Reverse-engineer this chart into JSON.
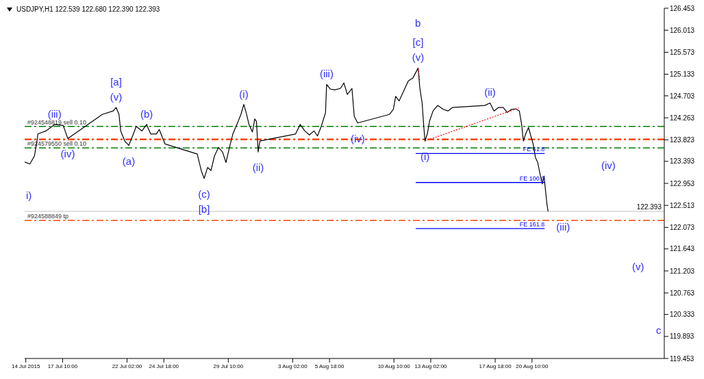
{
  "chart_data": {
    "type": "line",
    "title": "USDJPY,H1  122.539 122.680 122.390 122.393",
    "xlim": [
      "2015-07-14T16:00",
      "2015-08-30T00:00"
    ],
    "xticks": [
      {
        "value": "2015-07-14T18:00",
        "label": "14 Jul 2015"
      },
      {
        "value": "2015-07-17T10:00",
        "label": "17 Jul 10:00"
      },
      {
        "value": "2015-07-22T02:00",
        "label": "22 Jul 02:00"
      },
      {
        "value": "2015-07-24T18:00",
        "label": "24 Jul 18:00"
      },
      {
        "value": "2015-07-29T10:00",
        "label": "29 Jul 10:00"
      },
      {
        "value": "2015-08-03T02:00",
        "label": "3 Aug 02:00"
      },
      {
        "value": "2015-08-05T18:00",
        "label": "5 Aug 18:00"
      },
      {
        "value": "2015-08-10T10:00",
        "label": "10 Aug 10:00"
      },
      {
        "value": "2015-08-13T02:00",
        "label": "13 Aug 02:00"
      },
      {
        "value": "2015-08-17T18:00",
        "label": "17 Aug 18:00"
      },
      {
        "value": "2015-08-20T10:00",
        "label": "20 Aug 10:00"
      }
    ],
    "ylim": [
      119.453,
      126.453
    ],
    "yticks": [
      126.453,
      126.013,
      125.573,
      125.133,
      124.703,
      124.263,
      123.823,
      123.393,
      122.953,
      122.513,
      122.073,
      121.643,
      121.203,
      120.763,
      120.333,
      119.893,
      119.453
    ],
    "series": [
      {
        "color": "#000000",
        "line_style": "solid",
        "x": [
          "2015-07-14T16:00",
          "2015-07-15T01:00",
          "2015-07-15T09:00",
          "2015-07-15T13:00",
          "2015-07-15T15:00",
          "2015-07-16T05:00",
          "2015-07-16T20:00",
          "2015-07-17T11:00",
          "2015-07-17T19:00",
          "2015-07-20T07:00",
          "2015-07-21T02:00",
          "2015-07-21T07:00",
          "2015-07-21T12:00",
          "2015-07-21T15:00",
          "2015-07-21T22:00",
          "2015-07-22T05:00",
          "2015-07-22T13:00",
          "2015-07-22T18:00",
          "2015-07-23T04:00",
          "2015-07-23T12:00",
          "2015-07-23T19:00",
          "2015-07-24T05:00",
          "2015-07-24T10:00",
          "2015-07-24T20:00",
          "2015-07-27T04:00",
          "2015-07-27T11:00",
          "2015-07-27T16:00",
          "2015-07-27T22:00",
          "2015-07-28T04:00",
          "2015-07-28T10:00",
          "2015-07-28T17:00",
          "2015-07-29T00:00",
          "2015-07-29T06:00",
          "2015-07-29T12:00",
          "2015-07-29T18:00",
          "2015-07-30T02:00",
          "2015-07-30T08:00",
          "2015-07-30T13:00",
          "2015-07-30T17:00",
          "2015-07-30T22:00",
          "2015-07-31T04:00",
          "2015-07-31T08:00",
          "2015-07-31T11:00",
          "2015-07-31T14:00",
          "2015-07-31T17:00",
          "2015-08-03T07:00",
          "2015-08-03T15:00",
          "2015-08-03T23:00",
          "2015-08-04T07:00",
          "2015-08-04T15:00",
          "2015-08-04T21:00",
          "2015-08-05T03:00",
          "2015-08-05T11:00",
          "2015-08-05T13:00",
          "2015-08-05T19:00",
          "2015-08-06T03:00",
          "2015-08-06T13:00",
          "2015-08-06T19:00",
          "2015-08-07T01:00",
          "2015-08-07T09:00",
          "2015-08-07T13:00",
          "2015-08-07T19:00",
          "2015-08-10T02:00",
          "2015-08-10T09:00",
          "2015-08-10T13:00",
          "2015-08-10T19:00",
          "2015-08-11T03:00",
          "2015-08-11T11:00",
          "2015-08-11T19:00",
          "2015-08-12T01:00",
          "2015-08-12T04:00",
          "2015-08-12T07:00",
          "2015-08-12T11:00",
          "2015-08-12T14:00",
          "2015-08-12T16:00",
          "2015-08-12T20:00",
          "2015-08-13T00:00",
          "2015-08-13T06:00",
          "2015-08-13T14:00",
          "2015-08-14T00:00",
          "2015-08-14T08:00",
          "2015-08-14T16:00",
          "2015-08-17T00:00",
          "2015-08-17T09:00",
          "2015-08-17T16:00",
          "2015-08-18T00:00",
          "2015-08-18T08:00",
          "2015-08-18T15:00",
          "2015-08-18T22:00",
          "2015-08-19T06:00",
          "2015-08-19T12:00",
          "2015-08-19T16:00",
          "2015-08-19T19:00",
          "2015-08-19T23:00",
          "2015-08-20T04:00",
          "2015-08-20T08:00",
          "2015-08-20T12:00",
          "2015-08-20T16:00",
          "2015-08-20T20:00",
          "2015-08-21T00:00",
          "2015-08-21T04:00",
          "2015-08-21T07:00",
          "2015-08-21T09:00",
          "2015-08-21T12:00",
          "2015-08-21T14:00"
        ],
        "values": [
          123.38,
          123.34,
          123.5,
          123.76,
          123.94,
          124.0,
          124.13,
          124.11,
          123.85,
          124.33,
          124.4,
          124.47,
          124.33,
          124.0,
          123.8,
          123.71,
          123.94,
          124.09,
          124.0,
          124.13,
          123.94,
          123.94,
          124.03,
          123.74,
          123.54,
          123.21,
          123.05,
          123.27,
          123.21,
          123.5,
          123.67,
          123.58,
          123.37,
          123.67,
          123.94,
          124.16,
          124.33,
          124.53,
          124.37,
          124.13,
          123.98,
          124.24,
          124.19,
          123.58,
          123.8,
          123.94,
          124.13,
          124.0,
          123.92,
          124.0,
          123.9,
          124.07,
          124.36,
          124.93,
          124.84,
          124.82,
          124.85,
          124.96,
          124.73,
          124.85,
          124.29,
          124.16,
          124.33,
          124.43,
          124.69,
          124.6,
          124.8,
          125.0,
          125.06,
          125.19,
          125.26,
          124.86,
          124.56,
          124.07,
          123.8,
          123.94,
          124.2,
          124.4,
          124.51,
          124.43,
          124.4,
          124.47,
          124.51,
          124.56,
          124.4,
          124.47,
          124.47,
          124.37,
          124.43,
          124.44,
          124.4,
          124.13,
          123.8,
          123.94,
          124.07,
          123.9,
          123.74,
          123.47,
          123.37,
          123.14,
          122.94,
          123.1,
          122.87,
          122.54,
          122.39
        ]
      },
      {
        "name": "FE 61.8",
        "color": "#0000ff",
        "line_style": "solid",
        "x": [
          "2015-08-12T00:00",
          "2015-08-21T08:00"
        ],
        "values": [
          123.55,
          123.55
        ]
      },
      {
        "name": "FE 100.0",
        "color": "#0000ff",
        "line_style": "solid",
        "x": [
          "2015-08-12T00:00",
          "2015-08-21T08:00"
        ],
        "values": [
          122.97,
          122.97
        ]
      },
      {
        "name": "FE 161.8",
        "color": "#0000ff",
        "line_style": "solid",
        "x": [
          "2015-08-12T00:00",
          "2015-08-21T08:00"
        ],
        "values": [
          122.05,
          122.05
        ]
      },
      {
        "color": "#ff0000",
        "line_style": "dotted",
        "x": [
          "2015-08-12T16:00",
          "2015-08-19T11:00"
        ],
        "values": [
          123.8,
          124.46
        ]
      },
      {
        "color": "#ff0000",
        "line_style": "dotted",
        "x": [
          "2015-08-12T04:00",
          "2015-08-12T07:00"
        ],
        "values": [
          125.26,
          125.0
        ]
      }
    ],
    "ref_lines": [
      {
        "axis": "y",
        "value": 124.09,
        "label": "#924548819 sell 0.10",
        "color": "#008000",
        "line_style": "dashed"
      },
      {
        "axis": "y",
        "value": 123.83,
        "color": "#ff4500",
        "line_style": "dashed"
      },
      {
        "axis": "y",
        "value": 123.66,
        "label": "#924579550 sell 0.10",
        "color": "#008000",
        "line_style": "dashed"
      },
      {
        "axis": "y",
        "value": 122.393,
        "label": "122.393",
        "color": "#c0c0c0",
        "line_style": "solid"
      },
      {
        "axis": "y",
        "value": 122.21,
        "label": "#924588849 tp",
        "color": "#ff4500",
        "line_style": "dashed"
      }
    ],
    "annotations": [
      "i)",
      {
        "text": "(iii)",
        "x": "2015-07-16T20:00",
        "y": 124.13
      },
      {
        "text": "(iv)",
        "x": "2015-07-17T19:00",
        "y": 123.85
      },
      {
        "text": "(v)",
        "x": "2015-07-21T07:00",
        "y": 124.47
      },
      {
        "text": "[a]",
        "x": "2015-07-21T07:00",
        "y": 124.47
      },
      {
        "text": "(a)",
        "x": "2015-07-22T05:00",
        "y": 123.71
      },
      {
        "text": "(b)",
        "x": "2015-07-23T12:00",
        "y": 124.13
      },
      {
        "text": "(c)",
        "x": "2015-07-27T16:00",
        "y": 123.05
      },
      {
        "text": "[b]",
        "x": "2015-07-27T16:00",
        "y": 123.05
      },
      {
        "text": "(i)",
        "x": "2015-07-30T13:00",
        "y": 124.53
      },
      {
        "text": "(ii)",
        "x": "2015-07-31T14:00",
        "y": 123.58
      },
      {
        "text": "(iii)",
        "x": "2015-08-05T13:00",
        "y": 124.93
      },
      {
        "text": "(iv)",
        "x": "2015-08-07T19:00",
        "y": 124.16
      },
      {
        "text": "(v)",
        "x": "2015-08-12T04:00",
        "y": 125.26
      },
      {
        "text": "[c]",
        "x": "2015-08-12T04:00",
        "y": 125.26
      },
      "b",
      {
        "text": "(i)",
        "x": "2015-08-12T16:00",
        "y": 123.8
      },
      {
        "text": "(ii)",
        "x": "2015-08-17T09:00",
        "y": 124.56
      },
      {
        "text": "(iii)",
        "x": "2015-08-21T14:00",
        "y": 122.39
      },
      "(iv)",
      "(v)",
      "c"
    ]
  }
}
